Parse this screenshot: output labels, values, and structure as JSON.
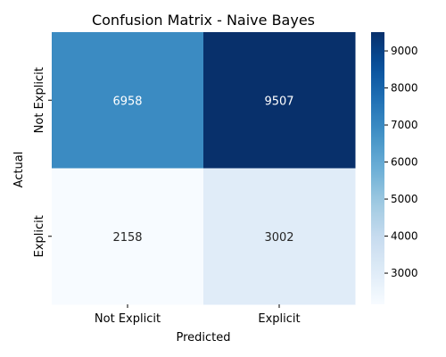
{
  "chart_data": {
    "type": "heatmap",
    "title": "Confusion Matrix - Naive Bayes",
    "xlabel": "Predicted",
    "ylabel": "Actual",
    "x_categories": [
      "Not Explicit",
      "Explicit"
    ],
    "y_categories": [
      "Not Explicit",
      "Explicit"
    ],
    "values": [
      [
        6958,
        9507
      ],
      [
        2158,
        3002
      ]
    ],
    "colormap": "Blues",
    "colorbar": {
      "range": [
        2158,
        9507
      ],
      "ticks": [
        3000,
        4000,
        5000,
        6000,
        7000,
        8000,
        9000
      ]
    },
    "annotation_colors": {
      "dark_cell": "#ffffff",
      "light_cell": "#262626"
    }
  }
}
